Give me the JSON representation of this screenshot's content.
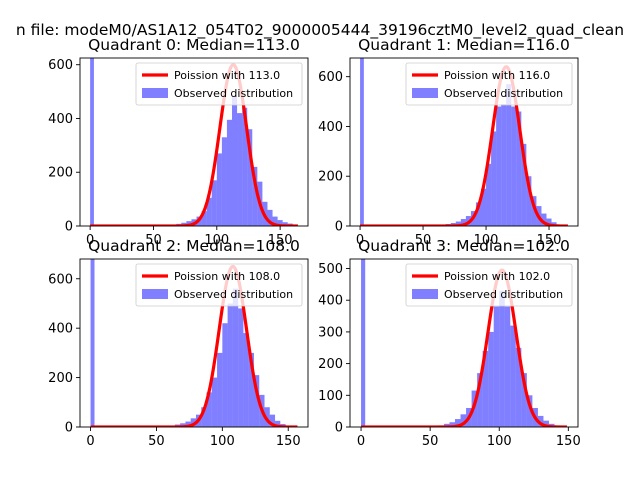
{
  "figure": {
    "suptitle": "n file: modeM0/AS1A12_054T02_9000005444_39196cztM0_level2_quad_clean"
  },
  "chart_data": [
    {
      "type": "bar",
      "title": "Quadrant 0: Median=113.0",
      "xlabel": "",
      "ylabel": "",
      "xlim": [
        -8,
        172
      ],
      "ylim": [
        0,
        625
      ],
      "xticks": [
        0,
        50,
        100,
        150
      ],
      "yticks": [
        0,
        200,
        400,
        600
      ],
      "legend_position": "upper-right",
      "series": [
        {
          "name": "Poission with 113.0",
          "kind": "line",
          "color": "#ff0000",
          "mean": 113.0,
          "peak": 600,
          "sigma": 10.6
        },
        {
          "name": "Observed distribution",
          "kind": "histogram",
          "color": "#0000ff",
          "alpha": 0.5,
          "bins": [
            {
              "x0": 0,
              "x1": 3,
              "count": 625
            },
            {
              "x0": 60,
              "x1": 64,
              "count": 3
            },
            {
              "x0": 64,
              "x1": 68,
              "count": 5
            },
            {
              "x0": 68,
              "x1": 72,
              "count": 8
            },
            {
              "x0": 72,
              "x1": 76,
              "count": 12
            },
            {
              "x0": 76,
              "x1": 80,
              "count": 18
            },
            {
              "x0": 80,
              "x1": 84,
              "count": 25
            },
            {
              "x0": 84,
              "x1": 88,
              "count": 35
            },
            {
              "x0": 88,
              "x1": 92,
              "count": 55
            },
            {
              "x0": 92,
              "x1": 96,
              "count": 105
            },
            {
              "x0": 96,
              "x1": 100,
              "count": 170
            },
            {
              "x0": 100,
              "x1": 104,
              "count": 270
            },
            {
              "x0": 104,
              "x1": 108,
              "count": 330
            },
            {
              "x0": 108,
              "x1": 112,
              "count": 395
            },
            {
              "x0": 112,
              "x1": 116,
              "count": 480
            },
            {
              "x0": 116,
              "x1": 120,
              "count": 420
            },
            {
              "x0": 120,
              "x1": 124,
              "count": 440
            },
            {
              "x0": 124,
              "x1": 128,
              "count": 360
            },
            {
              "x0": 128,
              "x1": 132,
              "count": 220
            },
            {
              "x0": 132,
              "x1": 136,
              "count": 165
            },
            {
              "x0": 136,
              "x1": 140,
              "count": 90
            },
            {
              "x0": 140,
              "x1": 144,
              "count": 60
            },
            {
              "x0": 144,
              "x1": 148,
              "count": 35
            },
            {
              "x0": 148,
              "x1": 152,
              "count": 22
            },
            {
              "x0": 152,
              "x1": 156,
              "count": 14
            },
            {
              "x0": 156,
              "x1": 160,
              "count": 9
            },
            {
              "x0": 160,
              "x1": 164,
              "count": 5
            }
          ]
        }
      ]
    },
    {
      "type": "bar",
      "title": "Quadrant 1: Median=116.0",
      "xlabel": "",
      "ylabel": "",
      "xlim": [
        -8,
        173
      ],
      "ylim": [
        0,
        675
      ],
      "xticks": [
        0,
        50,
        100,
        150
      ],
      "yticks": [
        0,
        200,
        400,
        600
      ],
      "legend_position": "upper-right",
      "series": [
        {
          "name": "Poission with 116.0",
          "kind": "line",
          "color": "#ff0000",
          "mean": 116.0,
          "peak": 640,
          "sigma": 10.8
        },
        {
          "name": "Observed distribution",
          "kind": "histogram",
          "color": "#0000ff",
          "alpha": 0.5,
          "bins": [
            {
              "x0": 0,
              "x1": 3,
              "count": 675
            },
            {
              "x0": 68,
              "x1": 72,
              "count": 8
            },
            {
              "x0": 72,
              "x1": 76,
              "count": 12
            },
            {
              "x0": 76,
              "x1": 80,
              "count": 18
            },
            {
              "x0": 80,
              "x1": 84,
              "count": 28
            },
            {
              "x0": 84,
              "x1": 88,
              "count": 40
            },
            {
              "x0": 88,
              "x1": 92,
              "count": 60
            },
            {
              "x0": 92,
              "x1": 96,
              "count": 95
            },
            {
              "x0": 96,
              "x1": 100,
              "count": 150
            },
            {
              "x0": 100,
              "x1": 104,
              "count": 250
            },
            {
              "x0": 104,
              "x1": 108,
              "count": 380
            },
            {
              "x0": 108,
              "x1": 112,
              "count": 480
            },
            {
              "x0": 112,
              "x1": 116,
              "count": 490
            },
            {
              "x0": 116,
              "x1": 120,
              "count": 570
            },
            {
              "x0": 120,
              "x1": 124,
              "count": 480
            },
            {
              "x0": 124,
              "x1": 128,
              "count": 460
            },
            {
              "x0": 128,
              "x1": 132,
              "count": 330
            },
            {
              "x0": 132,
              "x1": 136,
              "count": 200
            },
            {
              "x0": 136,
              "x1": 140,
              "count": 120
            },
            {
              "x0": 140,
              "x1": 144,
              "count": 80
            },
            {
              "x0": 144,
              "x1": 148,
              "count": 50
            },
            {
              "x0": 148,
              "x1": 152,
              "count": 30
            },
            {
              "x0": 152,
              "x1": 156,
              "count": 15
            }
          ]
        }
      ]
    },
    {
      "type": "bar",
      "title": "Quadrant 2: Median=108.0",
      "xlabel": "",
      "ylabel": "",
      "xlim": [
        -8,
        165
      ],
      "ylim": [
        0,
        680
      ],
      "xticks": [
        0,
        50,
        100,
        150
      ],
      "yticks": [
        0,
        200,
        400,
        600
      ],
      "legend_position": "upper-right",
      "series": [
        {
          "name": "Poission with 108.0",
          "kind": "line",
          "color": "#ff0000",
          "mean": 108.0,
          "peak": 650,
          "sigma": 10.4
        },
        {
          "name": "Observed distribution",
          "kind": "histogram",
          "color": "#0000ff",
          "alpha": 0.5,
          "bins": [
            {
              "x0": 0,
              "x1": 3,
              "count": 680
            },
            {
              "x0": 64,
              "x1": 68,
              "count": 10
            },
            {
              "x0": 68,
              "x1": 72,
              "count": 15
            },
            {
              "x0": 72,
              "x1": 76,
              "count": 22
            },
            {
              "x0": 76,
              "x1": 80,
              "count": 35
            },
            {
              "x0": 80,
              "x1": 84,
              "count": 50
            },
            {
              "x0": 84,
              "x1": 88,
              "count": 80
            },
            {
              "x0": 88,
              "x1": 92,
              "count": 140
            },
            {
              "x0": 92,
              "x1": 96,
              "count": 200
            },
            {
              "x0": 96,
              "x1": 100,
              "count": 300
            },
            {
              "x0": 100,
              "x1": 104,
              "count": 420
            },
            {
              "x0": 104,
              "x1": 108,
              "count": 500
            },
            {
              "x0": 108,
              "x1": 112,
              "count": 560
            },
            {
              "x0": 112,
              "x1": 116,
              "count": 480
            },
            {
              "x0": 116,
              "x1": 120,
              "count": 380
            },
            {
              "x0": 120,
              "x1": 124,
              "count": 300
            },
            {
              "x0": 124,
              "x1": 128,
              "count": 210
            },
            {
              "x0": 128,
              "x1": 132,
              "count": 130
            },
            {
              "x0": 132,
              "x1": 136,
              "count": 80
            },
            {
              "x0": 136,
              "x1": 140,
              "count": 50
            },
            {
              "x0": 140,
              "x1": 144,
              "count": 25
            },
            {
              "x0": 144,
              "x1": 148,
              "count": 12
            }
          ]
        }
      ]
    },
    {
      "type": "bar",
      "title": "Quadrant 3: Median=102.0",
      "xlabel": "",
      "ylabel": "",
      "xlim": [
        -8,
        157
      ],
      "ylim": [
        0,
        530
      ],
      "xticks": [
        0,
        50,
        100,
        150
      ],
      "yticks": [
        0,
        100,
        200,
        300,
        400,
        500
      ],
      "legend_position": "upper-right",
      "series": [
        {
          "name": "Poission with 102.0",
          "kind": "line",
          "color": "#ff0000",
          "mean": 102.0,
          "peak": 495,
          "sigma": 10.1
        },
        {
          "name": "Observed distribution",
          "kind": "histogram",
          "color": "#0000ff",
          "alpha": 0.5,
          "bins": [
            {
              "x0": 0,
              "x1": 3,
              "count": 530
            },
            {
              "x0": 56,
              "x1": 60,
              "count": 5
            },
            {
              "x0": 60,
              "x1": 64,
              "count": 10
            },
            {
              "x0": 64,
              "x1": 68,
              "count": 15
            },
            {
              "x0": 68,
              "x1": 72,
              "count": 25
            },
            {
              "x0": 72,
              "x1": 76,
              "count": 40
            },
            {
              "x0": 76,
              "x1": 80,
              "count": 60
            },
            {
              "x0": 80,
              "x1": 84,
              "count": 115
            },
            {
              "x0": 84,
              "x1": 88,
              "count": 170
            },
            {
              "x0": 88,
              "x1": 92,
              "count": 240
            },
            {
              "x0": 92,
              "x1": 96,
              "count": 300
            },
            {
              "x0": 96,
              "x1": 100,
              "count": 380
            },
            {
              "x0": 100,
              "x1": 104,
              "count": 430
            },
            {
              "x0": 104,
              "x1": 108,
              "count": 380
            },
            {
              "x0": 108,
              "x1": 112,
              "count": 320
            },
            {
              "x0": 112,
              "x1": 116,
              "count": 250
            },
            {
              "x0": 116,
              "x1": 120,
              "count": 170
            },
            {
              "x0": 120,
              "x1": 124,
              "count": 100
            },
            {
              "x0": 124,
              "x1": 128,
              "count": 60
            },
            {
              "x0": 128,
              "x1": 132,
              "count": 35
            },
            {
              "x0": 132,
              "x1": 136,
              "count": 20
            },
            {
              "x0": 136,
              "x1": 140,
              "count": 10
            },
            {
              "x0": 140,
              "x1": 144,
              "count": 5
            }
          ]
        }
      ]
    }
  ]
}
